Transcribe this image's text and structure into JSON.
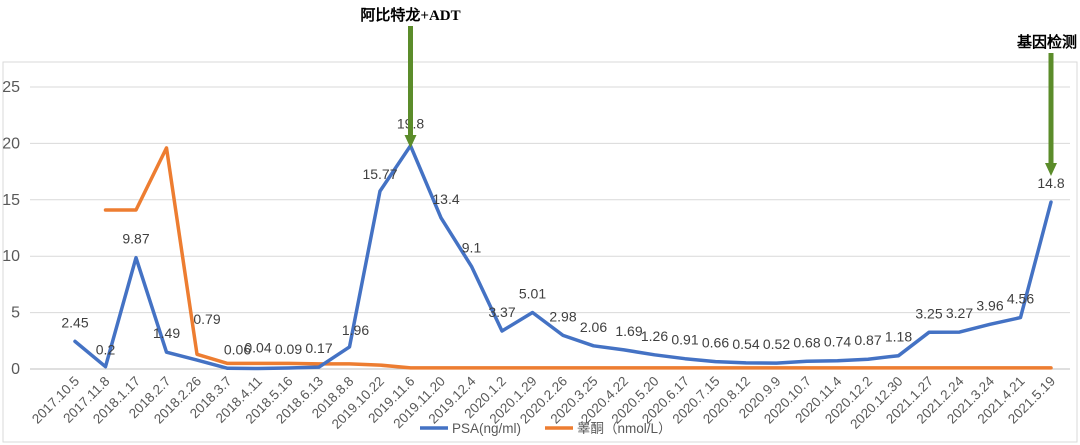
{
  "chart_data": {
    "type": "line",
    "categories": [
      "2017.10.5",
      "2017.11.8",
      "2018.1.17",
      "2018.2.7",
      "2018.2.26",
      "2018.3.7",
      "2018.4.11",
      "2018.5.16",
      "2018.6.13",
      "2018.8.8",
      "2019.10.22",
      "2019.11.6",
      "2019.11.20",
      "2019.12.4",
      "2020.1.2",
      "2020.1.29",
      "2020.2.26",
      "2020.3.25",
      "2020.4.22",
      "2020.5.20",
      "2020.6.17",
      "2020.7.15",
      "2020.8.12",
      "2020.9.9",
      "2020.10.7",
      "2020.11.4",
      "2020.12.2",
      "2020.12.30",
      "2021.1.27",
      "2021.2.24",
      "2021.3.24",
      "2021.4.21",
      "2021.5.19"
    ],
    "ylim": [
      0,
      25
    ],
    "yticks": [
      "0",
      "5",
      "10",
      "15",
      "20",
      "25"
    ],
    "grid": true,
    "legend_position": "bottom",
    "series": [
      {
        "name": "PSA(ng/ml)",
        "color": "#4472c4",
        "values": [
          2.45,
          0.2,
          9.87,
          1.49,
          0.79,
          0.06,
          0.04,
          0.09,
          0.17,
          1.96,
          15.77,
          19.8,
          13.4,
          9.1,
          3.37,
          5.01,
          2.98,
          2.06,
          1.69,
          1.26,
          0.91,
          0.66,
          0.54,
          0.52,
          0.68,
          0.74,
          0.87,
          1.18,
          3.25,
          3.27,
          3.96,
          4.56,
          14.8
        ],
        "labels": [
          "2.45",
          "0.2",
          "9.87",
          "1.49",
          "0.79",
          "0.06",
          "0.04",
          "0.09",
          "0.17",
          "1.96",
          "15.77",
          "19.8",
          "13.4",
          "9.1",
          "3.37",
          "5.01",
          "2.98",
          "2.06",
          "1.69",
          "1.26",
          "0.91",
          "0.66",
          "0.54",
          "0.52",
          "0.68",
          "0.74",
          "0.87",
          "1.18",
          "3.25",
          "3.27",
          "3.96",
          "4.56",
          "14.8"
        ]
      },
      {
        "name": "睾酮（nmol/L）",
        "color": "#ed7d31",
        "values": [
          null,
          14.1,
          14.1,
          19.6,
          1.3,
          0.5,
          0.5,
          0.5,
          0.45,
          0.45,
          0.35,
          0.1,
          0.1,
          0.1,
          0.1,
          0.1,
          0.1,
          0.1,
          0.1,
          0.1,
          0.1,
          0.1,
          0.1,
          0.1,
          0.1,
          0.1,
          0.1,
          0.1,
          0.1,
          0.1,
          0.1,
          0.1,
          0.1
        ]
      }
    ],
    "annotations": [
      {
        "text": "阿比特龙+ADT",
        "at_category": "2019.11.6",
        "color": "#5b8c2a"
      },
      {
        "text": "基因检测",
        "at_category": "2021.5.19",
        "color": "#5b8c2a"
      }
    ]
  }
}
